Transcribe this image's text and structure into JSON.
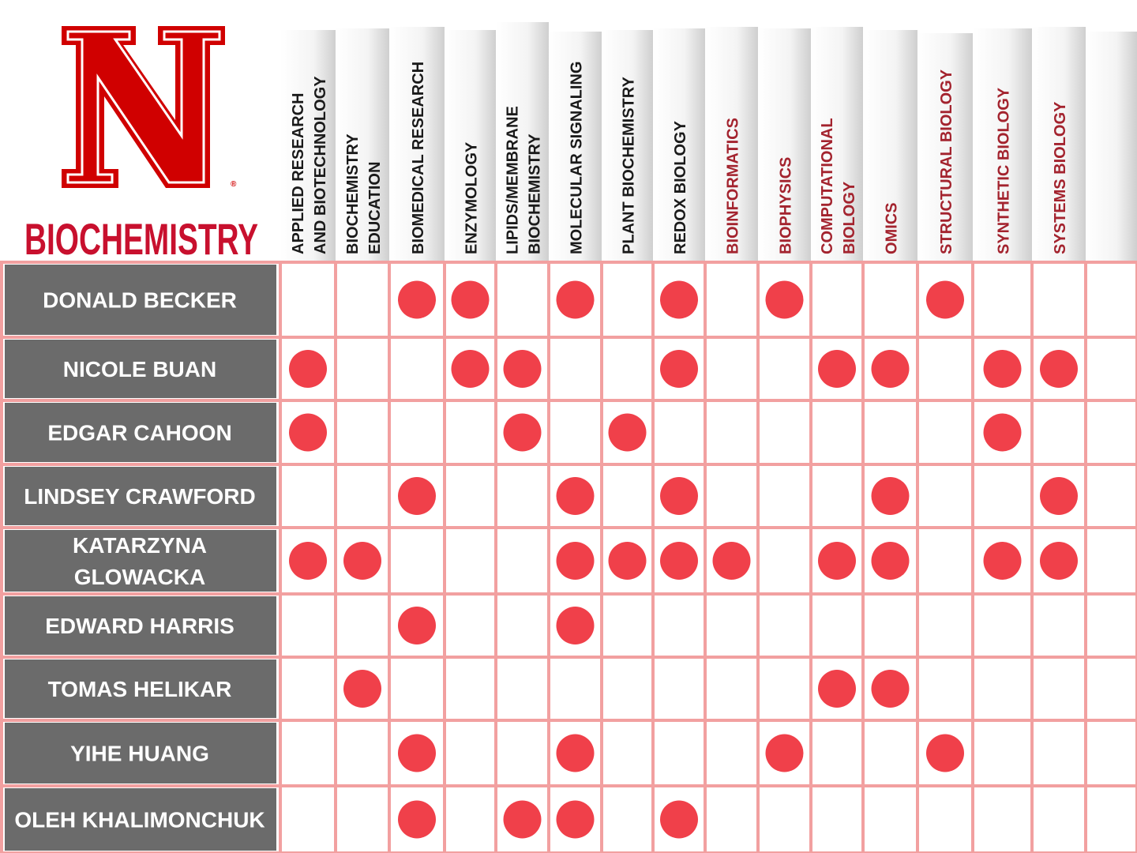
{
  "header": {
    "title": "BIOCHEMISTRY"
  },
  "columns": [
    {
      "lines": [
        "APPLIED RESEARCH",
        "AND BIOTECHNOLOGY"
      ],
      "color": "#1a1a1a"
    },
    {
      "lines": [
        "BIOCHEMISTRY",
        "EDUCATION"
      ],
      "color": "#1a1a1a"
    },
    {
      "lines": [
        "BIOMEDICAL RESEARCH"
      ],
      "color": "#1a1a1a"
    },
    {
      "lines": [
        "ENZYMOLOGY"
      ],
      "color": "#1a1a1a"
    },
    {
      "lines": [
        "LIPIDS/MEMBRANE",
        "BIOCHEMISTRY"
      ],
      "color": "#1a1a1a"
    },
    {
      "lines": [
        "MOLECULAR SIGNALING"
      ],
      "color": "#1a1a1a"
    },
    {
      "lines": [
        "PLANT BIOCHEMISTRY"
      ],
      "color": "#1a1a1a"
    },
    {
      "lines": [
        "REDOX BIOLOGY"
      ],
      "color": "#1a1a1a"
    },
    {
      "lines": [
        "BIOINFORMATICS"
      ],
      "color": "#a3232e"
    },
    {
      "lines": [
        "BIOPHYSICS"
      ],
      "color": "#a3232e"
    },
    {
      "lines": [
        "COMPUTATIONAL",
        "BIOLOGY"
      ],
      "color": "#a3232e"
    },
    {
      "lines": [
        "OMICS"
      ],
      "color": "#a3232e"
    },
    {
      "lines": [
        "STRUCTURAL BIOLOGY"
      ],
      "color": "#a3232e"
    },
    {
      "lines": [
        "SYNTHETIC BIOLOGY"
      ],
      "color": "#a3232e"
    },
    {
      "lines": [
        "SYSTEMS BIOLOGY"
      ],
      "color": "#a3232e"
    }
  ],
  "rows": [
    {
      "name": [
        "DONALD BECKER"
      ],
      "cells": [
        false,
        false,
        true,
        true,
        false,
        true,
        false,
        true,
        false,
        true,
        false,
        false,
        true,
        false,
        false
      ]
    },
    {
      "name": [
        "NICOLE BUAN"
      ],
      "cells": [
        true,
        false,
        false,
        true,
        true,
        false,
        false,
        true,
        false,
        false,
        true,
        true,
        false,
        true,
        true
      ]
    },
    {
      "name": [
        "EDGAR CAHOON"
      ],
      "cells": [
        true,
        false,
        false,
        false,
        true,
        false,
        true,
        false,
        false,
        false,
        false,
        false,
        false,
        true,
        false
      ]
    },
    {
      "name": [
        "LINDSEY CRAWFORD"
      ],
      "cells": [
        false,
        false,
        true,
        false,
        false,
        true,
        false,
        true,
        false,
        false,
        false,
        true,
        false,
        false,
        true
      ]
    },
    {
      "name": [
        "KATARZYNA",
        "GLOWACKA"
      ],
      "cells": [
        true,
        true,
        false,
        false,
        false,
        true,
        true,
        true,
        true,
        false,
        true,
        true,
        false,
        true,
        true
      ]
    },
    {
      "name": [
        "EDWARD HARRIS"
      ],
      "cells": [
        false,
        false,
        true,
        false,
        false,
        true,
        false,
        false,
        false,
        false,
        false,
        false,
        false,
        false,
        false
      ]
    },
    {
      "name": [
        "TOMAS HELIKAR"
      ],
      "cells": [
        false,
        true,
        false,
        false,
        false,
        false,
        false,
        false,
        false,
        false,
        true,
        true,
        false,
        false,
        false
      ]
    },
    {
      "name": [
        "YIHE HUANG"
      ],
      "cells": [
        false,
        false,
        true,
        false,
        false,
        true,
        false,
        false,
        false,
        true,
        false,
        false,
        true,
        false,
        false
      ]
    },
    {
      "name": [
        "OLEH KHALIMONCHUK"
      ],
      "cells": [
        false,
        false,
        true,
        false,
        true,
        true,
        false,
        true,
        false,
        false,
        false,
        false,
        false,
        false,
        false
      ]
    }
  ]
}
